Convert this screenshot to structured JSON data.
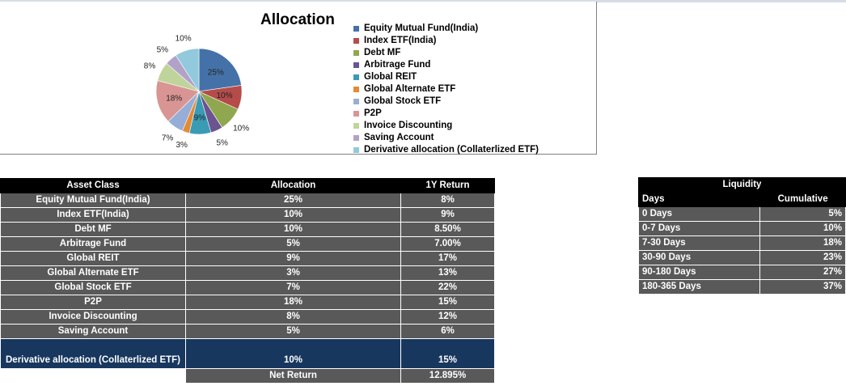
{
  "chart_data": {
    "type": "pie",
    "title": "Allocation",
    "slices": [
      {
        "label": "Equity Mutual Fund(India)",
        "value": 25,
        "display": "25%",
        "color": "#4472a8"
      },
      {
        "label": "Index ETF(India)",
        "value": 10,
        "display": "10%",
        "color": "#b54c4a"
      },
      {
        "label": "Debt MF",
        "value": 10,
        "display": "10%",
        "color": "#8fa84f"
      },
      {
        "label": "Arbitrage Fund",
        "value": 5,
        "display": "5%",
        "color": "#6b5490"
      },
      {
        "label": "Global REIT",
        "value": 9,
        "display": "9%",
        "color": "#3a9bb5"
      },
      {
        "label": "Global Alternate ETF",
        "value": 3,
        "display": "3%",
        "color": "#e48a35"
      },
      {
        "label": "Global  Stock ETF",
        "value": 7,
        "display": "7%",
        "color": "#96aed6"
      },
      {
        "label": "P2P",
        "value": 18,
        "display": "18%",
        "color": "#d99593"
      },
      {
        "label": "Invoice Discounting",
        "value": 8,
        "display": "8%",
        "color": "#bfd49b"
      },
      {
        "label": "Saving Account",
        "value": 5,
        "display": "5%",
        "color": "#b2a2c8"
      },
      {
        "label": "Derivative allocation (Collaterlized ETF)",
        "value": 10,
        "display": "10%",
        "color": "#92c9dc"
      }
    ],
    "legend": "right"
  },
  "asset_table": {
    "headers": [
      "Asset Class",
      "Allocation",
      "1Y Return"
    ],
    "rows": [
      {
        "asset": "Equity Mutual Fund(India)",
        "allocation": "25%",
        "return": "8%"
      },
      {
        "asset": "Index ETF(India)",
        "allocation": "10%",
        "return": "9%"
      },
      {
        "asset": "Debt MF",
        "allocation": "10%",
        "return": "8.50%"
      },
      {
        "asset": "Arbitrage Fund",
        "allocation": "5%",
        "return": "7.00%"
      },
      {
        "asset": "Global REIT",
        "allocation": "9%",
        "return": "17%"
      },
      {
        "asset": "Global Alternate ETF",
        "allocation": "3%",
        "return": "13%"
      },
      {
        "asset": "Global  Stock ETF",
        "allocation": "7%",
        "return": "22%"
      },
      {
        "asset": "P2P",
        "allocation": "18%",
        "return": "15%"
      },
      {
        "asset": "Invoice Discounting",
        "allocation": "8%",
        "return": "12%"
      },
      {
        "asset": "Saving Account",
        "allocation": "5%",
        "return": "6%"
      }
    ],
    "derivative_row": {
      "asset": "Derivative allocation (Collaterlized ETF)",
      "allocation": "10%",
      "return": "15%"
    },
    "net_label": "Net Return",
    "net_value": "12.895%"
  },
  "liquidity_table": {
    "title": "Liquidity",
    "col_days": "Days",
    "col_cumulative": "Cumulative",
    "rows": [
      {
        "days": "0 Days",
        "cumulative": "5%"
      },
      {
        "days": "0-7  Days",
        "cumulative": "10%"
      },
      {
        "days": "7-30 Days",
        "cumulative": "18%"
      },
      {
        "days": "30-90 Days",
        "cumulative": "23%"
      },
      {
        "days": "90-180 Days",
        "cumulative": "27%"
      },
      {
        "days": "180-365 Days",
        "cumulative": "37%"
      }
    ]
  }
}
